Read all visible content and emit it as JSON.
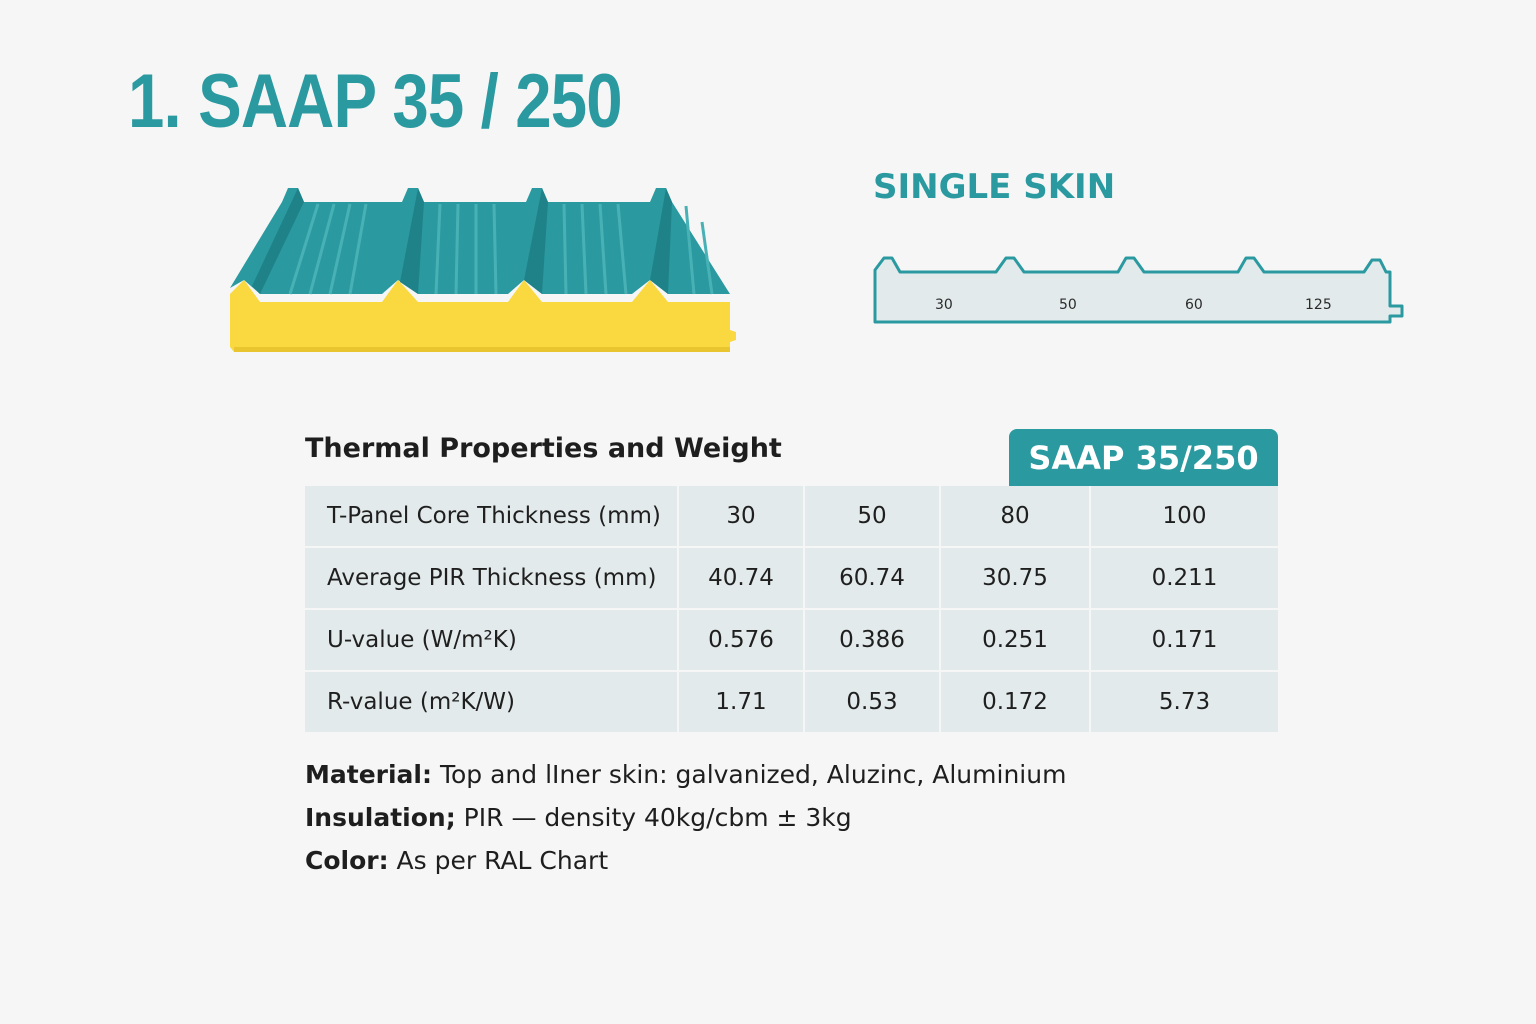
{
  "title": "1. SAAP 35 / 250",
  "single_skin": {
    "label": "SINGLE SKIN",
    "profile_labels": [
      "30",
      "50",
      "60",
      "125"
    ]
  },
  "colors": {
    "accent": "#2a9aa0",
    "insulation": "#f9d93f",
    "table_bg": "#e3eaeb"
  },
  "table": {
    "title": "Thermal Properties and Weight",
    "tag": "SAAP 35/250",
    "rows": [
      {
        "label": "T-Panel Core Thickness (mm)",
        "values": [
          "30",
          "50",
          "80",
          "100"
        ]
      },
      {
        "label": "Average PIR Thickness (mm)",
        "values": [
          "40.74",
          "60.74",
          "30.75",
          "0.211"
        ]
      },
      {
        "label": "U-value (W/m²K)",
        "values": [
          "0.576",
          "0.386",
          "0.251",
          "0.171"
        ]
      },
      {
        "label": "R-value (m²K/W)",
        "values": [
          "1.71",
          "0.53",
          "0.172",
          "5.73"
        ]
      }
    ]
  },
  "specs": {
    "material_label": "Material:",
    "material_value": "Top and lIner skin: galvanized, Aluzinc, Aluminium",
    "insulation_label": "Insulation;",
    "insulation_value": "PIR — density 40kg/cbm ± 3kg",
    "color_label": "Color:",
    "color_value": "As per RAL Chart"
  }
}
